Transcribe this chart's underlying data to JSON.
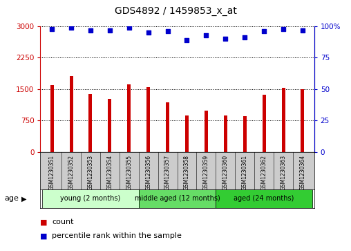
{
  "title": "GDS4892 / 1459853_x_at",
  "samples": [
    "GSM1230351",
    "GSM1230352",
    "GSM1230353",
    "GSM1230354",
    "GSM1230355",
    "GSM1230356",
    "GSM1230357",
    "GSM1230358",
    "GSM1230359",
    "GSM1230360",
    "GSM1230361",
    "GSM1230362",
    "GSM1230363",
    "GSM1230364"
  ],
  "counts": [
    1590,
    1820,
    1380,
    1270,
    1610,
    1550,
    1190,
    870,
    980,
    870,
    860,
    1360,
    1530,
    1490
  ],
  "percentile_ranks": [
    98,
    99,
    97,
    97,
    99,
    95,
    96,
    89,
    93,
    90,
    91,
    96,
    98,
    97
  ],
  "bar_color": "#cc0000",
  "dot_color": "#0000cc",
  "ylim_left": [
    0,
    3000
  ],
  "ylim_right": [
    0,
    100
  ],
  "yticks_left": [
    0,
    750,
    1500,
    2250,
    3000
  ],
  "ytick_labels_left": [
    "0",
    "750",
    "1500",
    "2250",
    "3000"
  ],
  "yticks_right": [
    0,
    25,
    50,
    75,
    100
  ],
  "ytick_labels_right": [
    "0",
    "25",
    "50",
    "75",
    "100%"
  ],
  "groups": [
    {
      "label": "young (2 months)",
      "start": 0,
      "end": 5,
      "color": "#ccffcc"
    },
    {
      "label": "middle aged (12 months)",
      "start": 5,
      "end": 9,
      "color": "#66dd66"
    },
    {
      "label": "aged (24 months)",
      "start": 9,
      "end": 14,
      "color": "#33cc33"
    }
  ],
  "age_label": "age",
  "legend_count_label": "count",
  "legend_percentile_label": "percentile rank within the sample",
  "title_fontsize": 10,
  "tick_fontsize": 7.5,
  "label_fontsize": 5.5,
  "group_fontsize": 7,
  "bar_width": 0.18
}
